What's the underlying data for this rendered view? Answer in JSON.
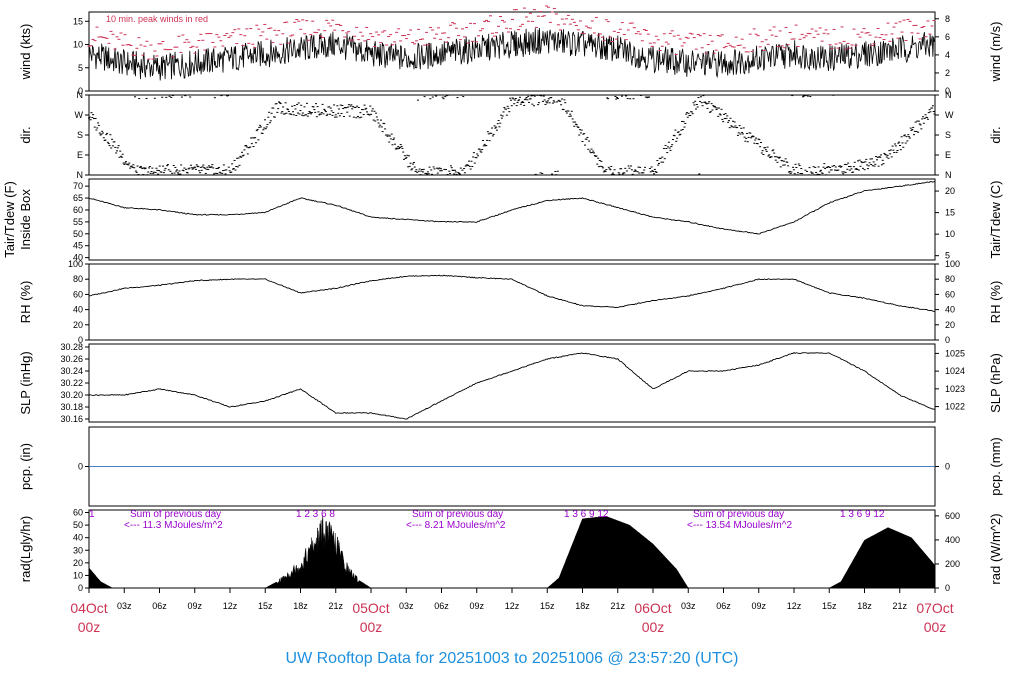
{
  "footer": {
    "title": "UW Rooftop Data for 20251003  to  20251006 @ 23:57:20  (UTC)"
  },
  "colors": {
    "date_label": "#cc3355",
    "peak_winds": "#cc3355",
    "zero_line": "#4a7fc4",
    "radiation_labels": "#9900cc",
    "footer": "#1e90dd"
  },
  "x_axis": {
    "time_labels": [
      "03z",
      "06z",
      "09z",
      "12z",
      "15z",
      "18z",
      "21z",
      "03z",
      "06z",
      "09z",
      "12z",
      "15z",
      "18z",
      "21z",
      "03z",
      "06z",
      "09z",
      "12z",
      "15z",
      "18z",
      "21z"
    ],
    "date_labels": [
      {
        "date": "04Oct",
        "time": "00z"
      },
      {
        "date": "05Oct",
        "time": "00z"
      },
      {
        "date": "06Oct",
        "time": "00z"
      },
      {
        "date": "07Oct",
        "time": "00z"
      }
    ]
  },
  "annotations": {
    "peak_winds_note": "10 min. peak winds in red",
    "sum_label": "Sum of previous day",
    "rad_sums": [
      "<--- 11.3 MJoules/m^2",
      "<--- 8.21 MJoules/m^2",
      "<--- 13.54 MJoules/m^2"
    ],
    "hour_marks": [
      "1",
      "1  2  3  6   8",
      "1  3  6  9  12",
      "1  3  6  9  12"
    ]
  },
  "chart_data": [
    {
      "type": "line",
      "name": "wind",
      "ylabel_left": "wind (kts)",
      "ylabel_right": "wind (m/s)",
      "ylim": [
        0,
        17
      ],
      "yticks_left": [
        0,
        5,
        10,
        15
      ],
      "yticks_right": [
        0,
        2,
        4,
        6,
        8
      ],
      "series": [
        {
          "name": "wind",
          "x": [
            0,
            3,
            6,
            9,
            12,
            15,
            18,
            21,
            24,
            27,
            30,
            33,
            36,
            39,
            42,
            45,
            48,
            51,
            54,
            57,
            60,
            63,
            66,
            69,
            72
          ],
          "y": [
            8,
            6,
            5,
            6,
            7,
            8,
            9,
            10,
            8,
            7,
            8,
            9,
            10,
            11,
            10,
            9,
            7,
            6,
            6,
            7,
            8,
            7,
            8,
            9,
            10
          ]
        },
        {
          "name": "10 min. peak winds",
          "x": [
            0,
            3,
            6,
            9,
            12,
            15,
            18,
            21,
            24,
            27,
            30,
            33,
            36,
            39,
            42,
            45,
            48,
            51,
            54,
            57,
            60,
            63,
            66,
            69,
            72
          ],
          "y": [
            12,
            10,
            9,
            10,
            11,
            12,
            13,
            14,
            12,
            11,
            12,
            13,
            15,
            16,
            14,
            13,
            11,
            10,
            10,
            11,
            12,
            11,
            12,
            13,
            14
          ]
        }
      ]
    },
    {
      "type": "scatter",
      "name": "dir",
      "ylabel_left": "dir.",
      "ylabel_right": "dir.",
      "yticks_labels": [
        "N",
        "E",
        "S",
        "W",
        "N"
      ],
      "ylim": [
        0,
        360
      ],
      "series": [
        {
          "name": "dir",
          "x": [
            0,
            4,
            8,
            12,
            16,
            20,
            24,
            28,
            32,
            36,
            40,
            44,
            48,
            52,
            56,
            60,
            64,
            68,
            72
          ],
          "y": [
            270,
            10,
            20,
            15,
            300,
            290,
            285,
            5,
            15,
            330,
            350,
            10,
            15,
            350,
            170,
            20,
            25,
            80,
            300
          ]
        }
      ]
    },
    {
      "type": "line",
      "name": "temperature",
      "ylabel_left": "Tair/Tdew (F)\nInside Box",
      "ylabel_right": "Tair/Tdew (C)",
      "ylim": [
        39,
        73
      ],
      "yticks_left": [
        40,
        45,
        50,
        55,
        60,
        65,
        70
      ],
      "yticks_right": [
        5,
        10,
        15,
        20
      ],
      "series": [
        {
          "name": "Tair",
          "x": [
            0,
            3,
            6,
            9,
            12,
            15,
            18,
            21,
            24,
            27,
            30,
            33,
            36,
            39,
            42,
            45,
            48,
            51,
            54,
            57,
            60,
            63,
            66,
            69,
            72
          ],
          "y": [
            65,
            61,
            60,
            58,
            58,
            59,
            65,
            62,
            57,
            56,
            55,
            55,
            60,
            64,
            65,
            61,
            57,
            55,
            52,
            50,
            55,
            63,
            68,
            70,
            72
          ]
        }
      ]
    },
    {
      "type": "line",
      "name": "rh",
      "ylabel_left": "RH (%)",
      "ylabel_right": "RH (%)",
      "ylim": [
        0,
        100
      ],
      "yticks_left": [
        0,
        20,
        40,
        60,
        80,
        100
      ],
      "yticks_right": [
        0,
        20,
        40,
        60,
        80,
        100
      ],
      "series": [
        {
          "name": "RH",
          "x": [
            0,
            3,
            6,
            9,
            12,
            15,
            18,
            21,
            24,
            27,
            30,
            33,
            36,
            39,
            42,
            45,
            48,
            51,
            54,
            57,
            60,
            63,
            66,
            69,
            72
          ],
          "y": [
            58,
            68,
            72,
            78,
            80,
            80,
            62,
            68,
            78,
            84,
            85,
            82,
            80,
            58,
            45,
            43,
            52,
            58,
            68,
            80,
            80,
            62,
            55,
            45,
            38
          ]
        }
      ]
    },
    {
      "type": "line",
      "name": "slp",
      "ylabel_left": "SLP (inHg)",
      "ylabel_right": "SLP (hPa)",
      "ylim": [
        30.155,
        30.285
      ],
      "yticks_left": [
        30.16,
        30.18,
        30.2,
        30.22,
        30.24,
        30.26,
        30.28
      ],
      "yticks_right": [
        1022,
        1023,
        1024,
        1025
      ],
      "series": [
        {
          "name": "SLP",
          "x": [
            0,
            3,
            6,
            9,
            12,
            15,
            18,
            21,
            24,
            27,
            30,
            33,
            36,
            39,
            42,
            45,
            48,
            51,
            54,
            57,
            60,
            63,
            66,
            69,
            72
          ],
          "y": [
            30.2,
            30.2,
            30.21,
            30.2,
            30.18,
            30.19,
            30.21,
            30.17,
            30.17,
            30.16,
            30.19,
            30.22,
            30.24,
            30.26,
            30.27,
            30.26,
            30.21,
            30.24,
            30.24,
            30.25,
            30.27,
            30.27,
            30.24,
            30.2,
            30.175
          ]
        }
      ]
    },
    {
      "type": "line",
      "name": "pcp",
      "ylabel_left": "pcp. (in)",
      "ylabel_right": "pcp. (mm)",
      "ylim": [
        -1,
        1
      ],
      "yticks_left": [
        0
      ],
      "yticks_right": [
        0
      ],
      "series": [
        {
          "name": "pcp",
          "x": [
            0,
            72
          ],
          "y": [
            0,
            0
          ]
        }
      ]
    },
    {
      "type": "area",
      "name": "radiation",
      "ylabel_left": "rad(Lgly/hr)",
      "ylabel_right": "rad (W/m^2)",
      "ylim": [
        0,
        62
      ],
      "yticks_left": [
        0,
        10,
        20,
        30,
        40,
        50,
        60
      ],
      "yticks_right": [
        0,
        200,
        400,
        600
      ],
      "series": [
        {
          "name": "rad",
          "x": [
            0,
            1,
            2,
            15,
            16,
            18,
            20,
            21,
            22,
            23,
            24,
            39,
            40,
            42,
            44,
            46,
            48,
            50,
            51,
            63,
            64,
            66,
            68,
            70,
            72
          ],
          "y": [
            16,
            5,
            0,
            0,
            5,
            22,
            55,
            42,
            18,
            6,
            0,
            0,
            8,
            55,
            57,
            50,
            35,
            15,
            0,
            0,
            5,
            38,
            48,
            40,
            18
          ]
        }
      ]
    }
  ]
}
